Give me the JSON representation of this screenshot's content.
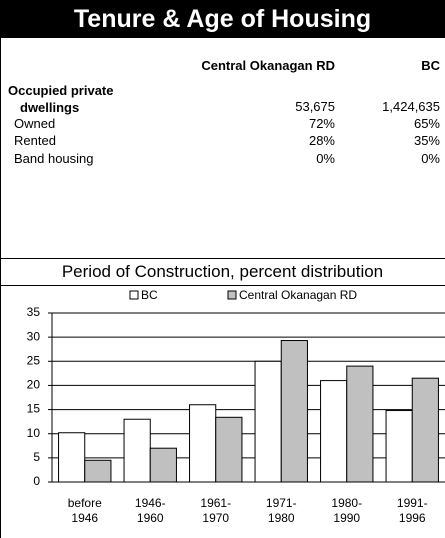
{
  "header": {
    "title": "Tenure & Age of Housing"
  },
  "table": {
    "columns": [
      "Central Okanagan RD",
      "BC"
    ],
    "rows": [
      [
        "Occupied private dwellings",
        "53,675",
        "1,424,635"
      ],
      [
        "Owned",
        "72%",
        "65%"
      ],
      [
        "Rented",
        "28%",
        "35%"
      ],
      [
        "Band housing",
        "0%",
        "0%"
      ]
    ]
  },
  "chart_data": {
    "type": "bar",
    "title": "Period of Construction, percent distribution",
    "categories": [
      "before 1946",
      "1946-1960",
      "1961-1970",
      "1971-1980",
      "1980-1990",
      "1991-1996"
    ],
    "series": [
      {
        "name": "BC",
        "color": "#ffffff",
        "values": [
          10.2,
          13,
          16,
          25,
          21,
          14.8
        ]
      },
      {
        "name": "Central Okanagan RD",
        "color": "#c0c0c0",
        "values": [
          4.5,
          7,
          13.4,
          29.3,
          24,
          21.5
        ]
      }
    ],
    "ylim": [
      0,
      35
    ],
    "yticks": [
      0,
      5,
      10,
      15,
      20,
      25,
      30,
      35
    ],
    "grid": true
  }
}
